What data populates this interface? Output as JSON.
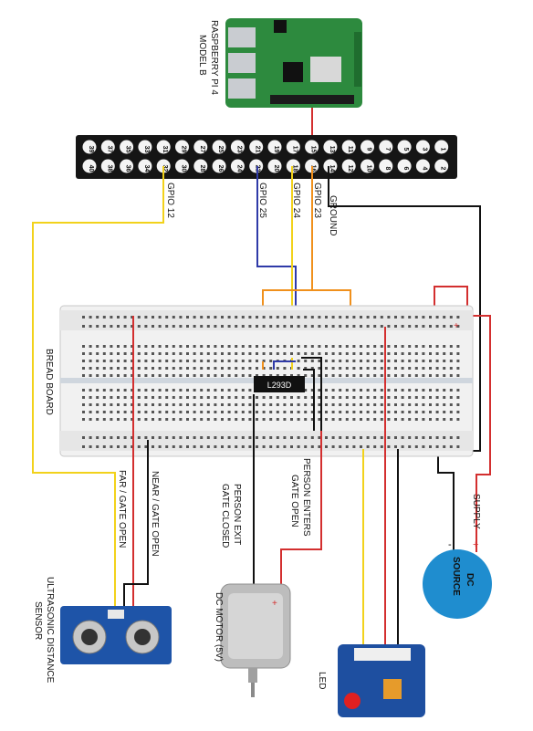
{
  "labels": {
    "rpi_model": [
      "RASPBERRY PI 4",
      "MODEL B"
    ],
    "gpio12": "GPIO 12",
    "gpio25": "GPIO 25",
    "gpio24": "GPIO 24",
    "gpio23": "GPIO 23",
    "ground": "GROUND",
    "breadboard": "BREAD BOARD",
    "ic": "L293D",
    "far_gate_open": "FAR / GATE OPEN",
    "near_gate_open": "NEAR / GATE OPEN",
    "person_exit": [
      "PERSON EXIT",
      "GATE CLOSED"
    ],
    "person_enters": [
      "PERSON ENTERS",
      "GATE OPEN"
    ],
    "supply": "SUPPLY",
    "dc_source": [
      "DC",
      "SOURCE"
    ],
    "dc_motor": "DC MOTOR (5V)",
    "ultrasonic": [
      "ULTRASONIC DISTANCE",
      "SENSOR"
    ],
    "led": "LED"
  },
  "header_pins": {
    "top_row": [
      "39",
      "37",
      "35",
      "33",
      "31",
      "29",
      "27",
      "25",
      "23",
      "21",
      "19",
      "17",
      "15",
      "13",
      "11",
      "9",
      "7",
      "5",
      "3",
      "1"
    ],
    "bottom_row": [
      "40",
      "38",
      "36",
      "34",
      "32",
      "30",
      "28",
      "26",
      "24",
      "22",
      "20",
      "18",
      "16",
      "14",
      "12",
      "10",
      "8",
      "6",
      "4",
      "2"
    ]
  },
  "wire_colors": {
    "yellow": "#f2d21b",
    "blue": "#2f3aa8",
    "orange": "#f0901c",
    "black": "#111111",
    "red": "#d32f2f"
  },
  "polarity": {
    "plus": "+",
    "minus": "-"
  }
}
